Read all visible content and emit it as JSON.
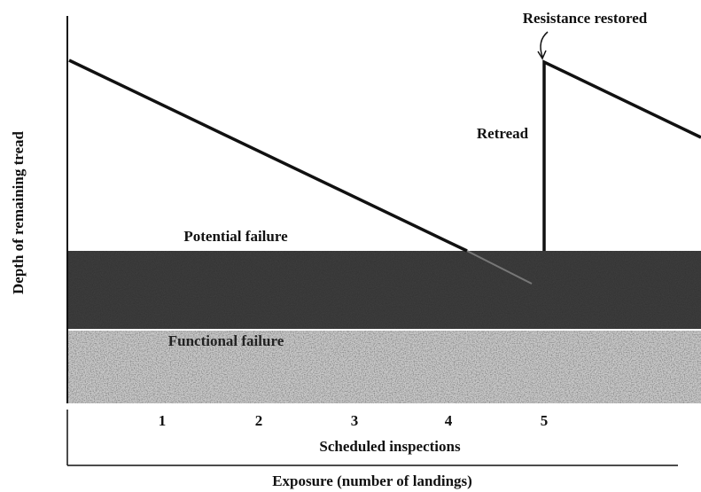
{
  "diagram": {
    "y_axis_label": "Depth of remaining tread",
    "x_axis_label": "Exposure (number of landings)",
    "inspections_label": "Scheduled inspections",
    "inspections": [
      1,
      2,
      3,
      4,
      5
    ],
    "zones": {
      "potential": "Potential failure",
      "functional": "Functional failure"
    },
    "annotations": {
      "restored": "Resistance restored",
      "retread": "Retread"
    }
  }
}
